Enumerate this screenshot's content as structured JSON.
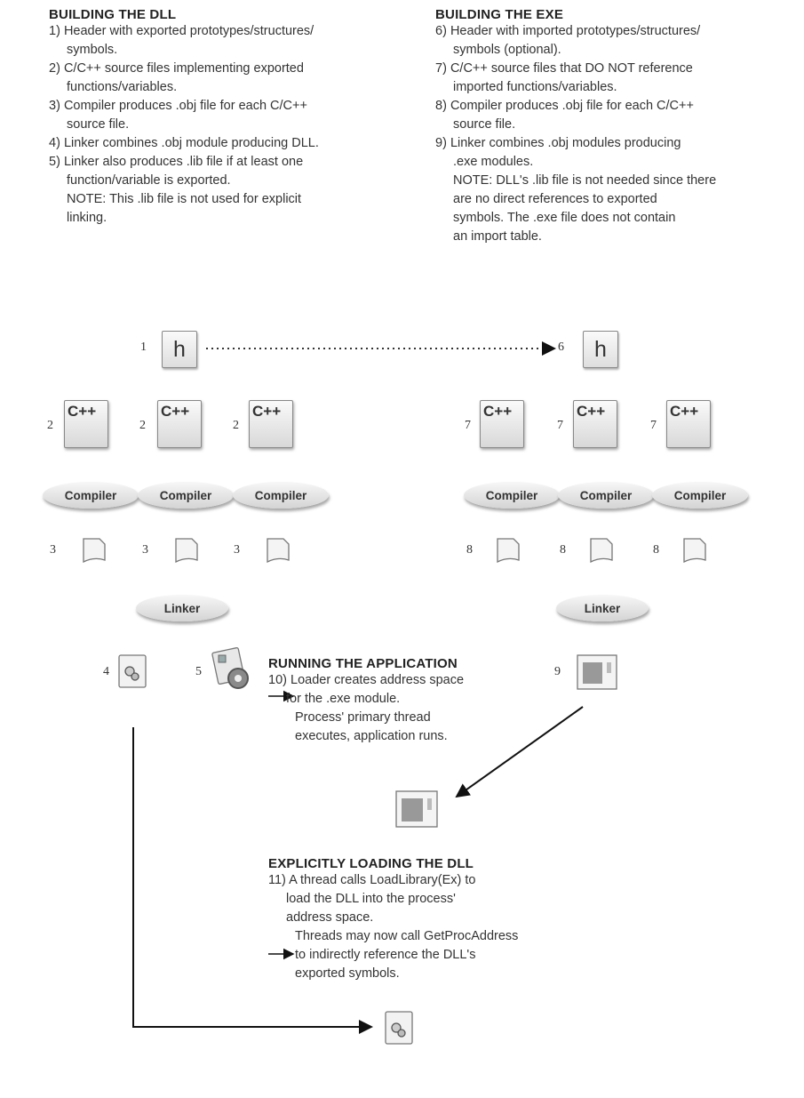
{
  "dll": {
    "heading": "BUILDING THE DLL",
    "steps": [
      {
        "num": "1)",
        "lines": [
          "Header with exported prototypes/structures/",
          "symbols."
        ]
      },
      {
        "num": "2)",
        "lines": [
          "C/C++ source files implementing exported",
          "functions/variables."
        ]
      },
      {
        "num": "3)",
        "lines": [
          "Compiler produces .obj file for each C/C++",
          "source file."
        ]
      },
      {
        "num": "4)",
        "lines": [
          "Linker combines .obj module producing DLL."
        ]
      },
      {
        "num": "5)",
        "lines": [
          "Linker also produces .lib file if at least one",
          "function/variable is exported."
        ]
      }
    ],
    "note": [
      "NOTE: This .lib file is not used for explicit",
      "linking."
    ]
  },
  "exe": {
    "heading": "BUILDING THE EXE",
    "steps": [
      {
        "num": "6)",
        "lines": [
          "Header with imported prototypes/structures/",
          "symbols (optional)."
        ]
      },
      {
        "num": "7)",
        "lines": [
          "C/C++ source files that DO NOT reference",
          "imported functions/variables."
        ]
      },
      {
        "num": "8)",
        "lines": [
          "Compiler produces .obj file for each C/C++",
          "source file."
        ]
      },
      {
        "num": "9)",
        "lines": [
          "Linker combines .obj modules producing",
          ".exe modules."
        ]
      }
    ],
    "note": [
      "NOTE: DLL's .lib file is not needed since there",
      "are no direct references to exported",
      "symbols. The .exe file does not contain",
      "an import table."
    ]
  },
  "running": {
    "heading": "RUNNING THE APPLICATION",
    "num": "10)",
    "lines": [
      "Loader creates address space",
      "for the .exe module."
    ],
    "arrow_lines": [
      "Process' primary thread",
      "executes, application runs."
    ]
  },
  "explicit": {
    "heading": "EXPLICITLY LOADING THE DLL",
    "num": "11)",
    "lines": [
      "A thread calls LoadLibrary(Ex) to",
      "load the DLL into the process'",
      "address space."
    ],
    "arrow_lines": [
      "Threads may now call GetProcAddress",
      "to indirectly reference the DLL's",
      "exported symbols."
    ]
  },
  "diagram": {
    "header_letter": "h",
    "cpp_label": "C++",
    "compiler_label": "Compiler",
    "linker_label": "Linker",
    "labels": {
      "h_dll": "1",
      "h_exe": "6",
      "cpp_dll": [
        "2",
        "2",
        "2"
      ],
      "cpp_exe": [
        "7",
        "7",
        "7"
      ],
      "obj_dll": [
        "3",
        "3",
        "3"
      ],
      "obj_exe": [
        "8",
        "8",
        "8"
      ],
      "dll_out": "4",
      "lib_out": "5",
      "exe_out": "9"
    }
  }
}
